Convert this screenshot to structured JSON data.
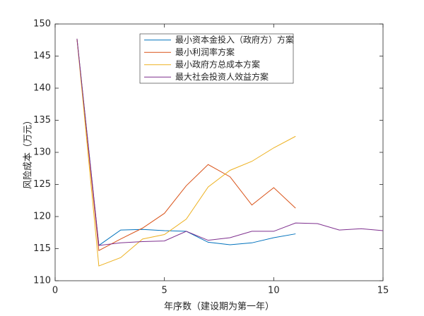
{
  "chart_data": {
    "type": "line",
    "xlabel": "年序数（建设期为第一年）",
    "ylabel": "风险成本（万元）",
    "xlim": [
      0,
      15
    ],
    "xticks": [
      0,
      5,
      10,
      15
    ],
    "ylim": [
      110,
      150
    ],
    "yticks": [
      110,
      115,
      120,
      125,
      130,
      135,
      140,
      145,
      150
    ],
    "legend_position": "top",
    "series": [
      {
        "name": "最小资本金投入（政府方）方案",
        "color": "#0072BD",
        "x": [
          1,
          2,
          3,
          4,
          5,
          6,
          7,
          8,
          9,
          10,
          11
        ],
        "values": [
          147.7,
          115.5,
          117.9,
          118.0,
          117.8,
          117.7,
          116.0,
          115.6,
          115.9,
          116.7,
          117.3
        ]
      },
      {
        "name": "最小利润率方案",
        "color": "#D95319",
        "x": [
          1,
          2,
          3,
          4,
          5,
          6,
          7,
          8,
          9,
          10,
          11
        ],
        "values": [
          147.7,
          114.7,
          116.5,
          118.2,
          120.5,
          124.8,
          128.1,
          126.2,
          121.8,
          124.5,
          121.3
        ]
      },
      {
        "name": "最小政府方总成本方案",
        "color": "#EDB120",
        "x": [
          1,
          2,
          3,
          4,
          5,
          6,
          7,
          8,
          9,
          10,
          11
        ],
        "values": [
          147.7,
          112.3,
          113.6,
          116.5,
          117.2,
          119.6,
          124.6,
          127.2,
          128.6,
          130.7,
          132.5
        ]
      },
      {
        "name": "最大社会投资人效益方案",
        "color": "#7E2F8E",
        "x": [
          1,
          2,
          3,
          4,
          5,
          6,
          7,
          8,
          9,
          10,
          11,
          12,
          13,
          14,
          15
        ],
        "values": [
          147.7,
          115.5,
          115.9,
          116.1,
          116.2,
          117.7,
          116.3,
          116.7,
          117.7,
          117.7,
          119.0,
          118.9,
          117.9,
          118.1,
          117.8
        ]
      }
    ]
  }
}
